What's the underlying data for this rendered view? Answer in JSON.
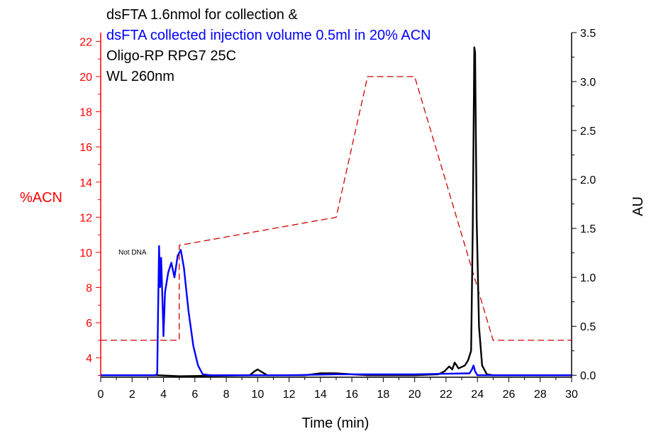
{
  "chart_data": {
    "type": "line",
    "title_lines": [
      {
        "text": "dsFTA 1.6nmol for collection &",
        "color": "#000000"
      },
      {
        "text": "dsFTA collected injection volume 0.5ml in 20% ACN",
        "color": "#0000ff"
      },
      {
        "text": "Oligo-RP RPG7 25C",
        "color": "#000000"
      },
      {
        "text": "WL 260nm",
        "color": "#000000"
      }
    ],
    "annotation": "Not DNA",
    "xlabel": "Time (min)",
    "ylabel_left": "%ACN",
    "ylabel_right": "AU",
    "xlim": [
      0,
      30
    ],
    "ylim_left": [
      2.9,
      22.5
    ],
    "ylim_right": [
      -0.02,
      3.5
    ],
    "x_ticks": [
      "0",
      "2",
      "4",
      "6",
      "8",
      "10",
      "12",
      "14",
      "16",
      "18",
      "20",
      "22",
      "24",
      "26",
      "28",
      "30"
    ],
    "y_left_ticks": [
      "4",
      "6",
      "8",
      "10",
      "12",
      "14",
      "16",
      "18",
      "20",
      "22"
    ],
    "y_right_ticks": [
      "0.0",
      "0.5",
      "1.0",
      "1.5",
      "2.0",
      "2.5",
      "3.0",
      "3.5"
    ],
    "colors": {
      "left_axis": "#ff0000",
      "gradient": "#cc0000",
      "black_trace": "#000000",
      "blue_trace": "#0000ff"
    },
    "series": [
      {
        "axis": "left",
        "style": "dashed",
        "color": "#cc0000",
        "points": [
          [
            0,
            5
          ],
          [
            5,
            5
          ],
          [
            5,
            10.4
          ],
          [
            15,
            12
          ],
          [
            17,
            20
          ],
          [
            20,
            20
          ],
          [
            25,
            5
          ],
          [
            30,
            5
          ]
        ]
      },
      {
        "axis": "right",
        "style": "solid",
        "color": "#000000",
        "points": [
          [
            0,
            0.0
          ],
          [
            3.6,
            0.0
          ],
          [
            5,
            -0.01
          ],
          [
            9.5,
            0.0
          ],
          [
            9.8,
            0.04
          ],
          [
            10,
            0.06
          ],
          [
            10.3,
            0.03
          ],
          [
            10.6,
            0.0
          ],
          [
            13,
            0.0
          ],
          [
            14,
            0.02
          ],
          [
            15,
            0.02
          ],
          [
            16,
            0.01
          ],
          [
            17,
            0.0
          ],
          [
            20,
            0.0
          ],
          [
            21.5,
            0.01
          ],
          [
            21.9,
            0.04
          ],
          [
            22.2,
            0.09
          ],
          [
            22.4,
            0.06
          ],
          [
            22.55,
            0.13
          ],
          [
            22.8,
            0.07
          ],
          [
            23.2,
            0.1
          ],
          [
            23.4,
            0.15
          ],
          [
            23.6,
            0.25
          ],
          [
            23.7,
            1.5
          ],
          [
            23.8,
            3.35
          ],
          [
            23.85,
            3.3
          ],
          [
            23.95,
            1.6
          ],
          [
            24.1,
            0.5
          ],
          [
            24.3,
            0.1
          ],
          [
            24.6,
            0.01
          ],
          [
            25,
            0.0
          ],
          [
            30,
            0.0
          ]
        ]
      },
      {
        "axis": "right",
        "style": "solid",
        "color": "#0000ff",
        "points": [
          [
            0,
            0.0
          ],
          [
            3.5,
            0.0
          ],
          [
            3.6,
            0.02
          ],
          [
            3.65,
            0.6
          ],
          [
            3.72,
            1.32
          ],
          [
            3.78,
            0.9
          ],
          [
            3.85,
            1.2
          ],
          [
            3.95,
            0.7
          ],
          [
            4.0,
            0.4
          ],
          [
            4.1,
            0.85
          ],
          [
            4.3,
            1.05
          ],
          [
            4.5,
            1.15
          ],
          [
            4.7,
            1.0
          ],
          [
            4.9,
            1.22
          ],
          [
            5.1,
            1.28
          ],
          [
            5.3,
            1.1
          ],
          [
            5.6,
            0.65
          ],
          [
            5.9,
            0.3
          ],
          [
            6.2,
            0.1
          ],
          [
            6.5,
            0.01
          ],
          [
            7,
            0.0
          ],
          [
            12,
            0.0
          ],
          [
            15,
            0.01
          ],
          [
            20,
            0.01
          ],
          [
            23.5,
            0.02
          ],
          [
            23.65,
            0.06
          ],
          [
            23.75,
            0.1
          ],
          [
            23.85,
            0.04
          ],
          [
            24,
            0.0
          ],
          [
            30,
            0.0
          ]
        ]
      }
    ]
  }
}
